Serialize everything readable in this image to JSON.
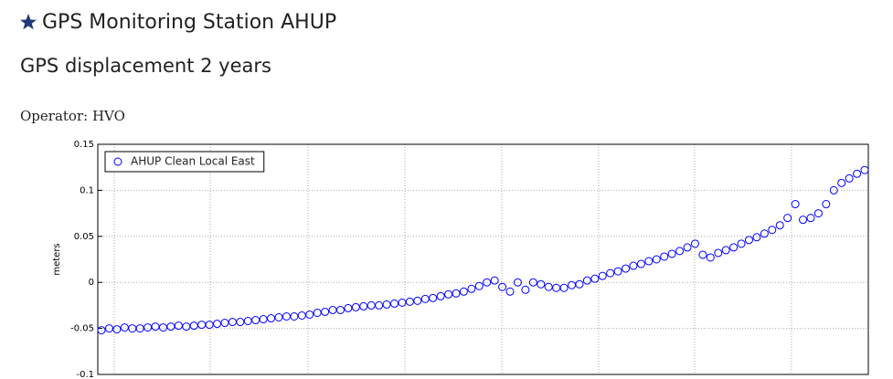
{
  "page": {
    "title": "GPS Monitoring Station AHUP",
    "subtitle": "GPS displacement 2 years",
    "operator": "Operator: HVO"
  },
  "chart_data": {
    "type": "scatter",
    "ylabel": "meters",
    "ylim": [
      -0.1,
      0.15
    ],
    "yticks": [
      0.15,
      0.1,
      0.05,
      0,
      -0.05,
      -0.1
    ],
    "grid": true,
    "legend": "upper left",
    "series": [
      {
        "name": "AHUP Clean Local East",
        "color": "#0000ff",
        "values": [
          -0.052,
          -0.05,
          -0.051,
          -0.049,
          -0.05,
          -0.05,
          -0.049,
          -0.048,
          -0.049,
          -0.048,
          -0.047,
          -0.048,
          -0.047,
          -0.046,
          -0.046,
          -0.045,
          -0.044,
          -0.043,
          -0.043,
          -0.042,
          -0.041,
          -0.04,
          -0.039,
          -0.038,
          -0.037,
          -0.037,
          -0.036,
          -0.035,
          -0.033,
          -0.032,
          -0.03,
          -0.03,
          -0.028,
          -0.027,
          -0.026,
          -0.025,
          -0.025,
          -0.024,
          -0.023,
          -0.022,
          -0.021,
          -0.02,
          -0.018,
          -0.017,
          -0.015,
          -0.013,
          -0.012,
          -0.01,
          -0.007,
          -0.004,
          0.0,
          0.002,
          -0.005,
          -0.01,
          0.0,
          -0.008,
          0.0,
          -0.002,
          -0.005,
          -0.006,
          -0.006,
          -0.003,
          -0.002,
          0.002,
          0.004,
          0.007,
          0.01,
          0.012,
          0.015,
          0.018,
          0.02,
          0.023,
          0.025,
          0.028,
          0.031,
          0.034,
          0.038,
          0.042,
          0.03,
          0.027,
          0.032,
          0.035,
          0.038,
          0.042,
          0.046,
          0.049,
          0.053,
          0.057,
          0.062,
          0.07,
          0.085,
          0.068,
          0.07,
          0.075,
          0.085,
          0.1,
          0.108,
          0.113,
          0.118,
          0.122
        ]
      }
    ]
  }
}
